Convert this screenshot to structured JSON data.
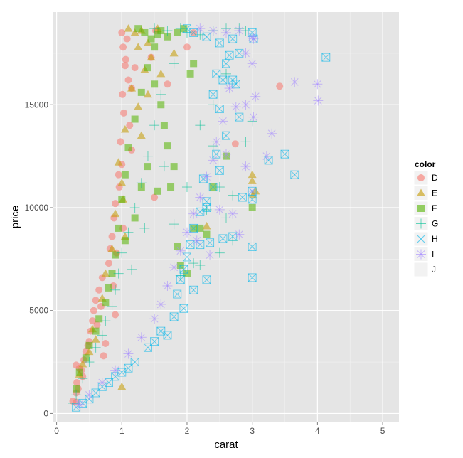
{
  "chart_data": {
    "type": "scatter",
    "title": "",
    "xlabel": "carat",
    "ylabel": "price",
    "xlim": [
      -0.05,
      5.25
    ],
    "ylim": [
      -400,
      19500
    ],
    "x_ticks": [
      0,
      1,
      2,
      3,
      4,
      5
    ],
    "y_ticks": [
      0,
      5000,
      10000,
      15000
    ],
    "x_tick_labels": [
      "0",
      "1",
      "2",
      "3",
      "4",
      "5"
    ],
    "y_tick_labels": [
      "0",
      "5000",
      "10000",
      "15000"
    ],
    "grid": true,
    "legend": {
      "title": "color",
      "placement": "right",
      "entries": [
        {
          "label": "D",
          "shape": "circle",
          "color": "#F8766D"
        },
        {
          "label": "E",
          "shape": "triangle",
          "color": "#C49A00"
        },
        {
          "label": "F",
          "shape": "square",
          "color": "#53B400"
        },
        {
          "label": "G",
          "shape": "plus",
          "color": "#00C094"
        },
        {
          "label": "H",
          "shape": "square-x",
          "color": "#00B6EB"
        },
        {
          "label": "I",
          "shape": "asterisk",
          "color": "#A58AFF"
        },
        {
          "label": "J",
          "shape": "none",
          "color": "#FB61D7"
        }
      ]
    },
    "series": [
      {
        "name": "D",
        "shape": "circle",
        "color": "#F8766D",
        "points": [
          [
            1.0,
            18500
          ],
          [
            1.02,
            17800
          ],
          [
            1.05,
            16900
          ],
          [
            1.01,
            15500
          ],
          [
            1.03,
            14600
          ],
          [
            0.98,
            13200
          ],
          [
            1.0,
            12100
          ],
          [
            0.96,
            11000
          ],
          [
            0.9,
            10200
          ],
          [
            0.88,
            9500
          ],
          [
            0.85,
            8600
          ],
          [
            0.82,
            8000
          ],
          [
            0.8,
            7300
          ],
          [
            0.7,
            6600
          ],
          [
            0.65,
            6000
          ],
          [
            0.6,
            5500
          ],
          [
            0.57,
            5000
          ],
          [
            0.55,
            4500
          ],
          [
            0.52,
            4000
          ],
          [
            0.5,
            3500
          ],
          [
            0.45,
            3000
          ],
          [
            0.42,
            2600
          ],
          [
            0.3,
            2350
          ],
          [
            0.35,
            2200
          ],
          [
            0.4,
            1800
          ],
          [
            0.31,
            1500
          ],
          [
            0.3,
            1000
          ],
          [
            0.3,
            550
          ],
          [
            0.25,
            600
          ],
          [
            0.72,
            2800
          ],
          [
            0.75,
            3400
          ],
          [
            0.9,
            4800
          ],
          [
            1.06,
            17200
          ],
          [
            1.1,
            16200
          ],
          [
            1.08,
            18200
          ],
          [
            1.12,
            14000
          ],
          [
            1.15,
            15800
          ],
          [
            1.2,
            16800
          ],
          [
            1.15,
            12800
          ],
          [
            1.45,
            17300
          ],
          [
            1.52,
            18600
          ],
          [
            1.7,
            16000
          ],
          [
            2.0,
            17800
          ],
          [
            2.1,
            18500
          ],
          [
            3.42,
            15900
          ],
          [
            2.74,
            13100
          ],
          [
            1.5,
            10500
          ],
          [
            1.02,
            9000
          ],
          [
            0.92,
            7800
          ],
          [
            0.95,
            11600
          ],
          [
            0.87,
            6200
          ],
          [
            0.68,
            5200
          ],
          [
            0.62,
            4300
          ],
          [
            0.48,
            3300
          ],
          [
            0.38,
            2100
          ],
          [
            0.33,
            1200
          ]
        ]
      },
      {
        "name": "E",
        "shape": "triangle",
        "color": "#C49A00",
        "points": [
          [
            1.1,
            18700
          ],
          [
            1.2,
            18500
          ],
          [
            1.3,
            18600
          ],
          [
            1.25,
            17800
          ],
          [
            1.4,
            18000
          ],
          [
            1.45,
            17300
          ],
          [
            1.55,
            18700
          ],
          [
            1.35,
            16700
          ],
          [
            1.15,
            15800
          ],
          [
            1.05,
            13800
          ],
          [
            0.95,
            12200
          ],
          [
            0.9,
            9700
          ],
          [
            1.0,
            11200
          ],
          [
            1.02,
            10400
          ],
          [
            0.7,
            5600
          ],
          [
            0.55,
            4100
          ],
          [
            0.6,
            3600
          ],
          [
            0.4,
            2400
          ],
          [
            1.0,
            1300
          ],
          [
            1.3,
            13500
          ],
          [
            1.6,
            16500
          ],
          [
            1.8,
            17500
          ],
          [
            2.3,
            9100
          ],
          [
            3.0,
            11600
          ],
          [
            3.01,
            10600
          ],
          [
            3.05,
            10800
          ],
          [
            3.0,
            11300
          ],
          [
            1.25,
            14900
          ],
          [
            1.4,
            15500
          ],
          [
            1.05,
            8600
          ],
          [
            0.85,
            8000
          ],
          [
            0.75,
            6800
          ],
          [
            0.5,
            3000
          ],
          [
            0.35,
            1900
          ]
        ]
      },
      {
        "name": "F",
        "shape": "square",
        "color": "#53B400",
        "points": [
          [
            1.25,
            18700
          ],
          [
            1.35,
            18500
          ],
          [
            1.45,
            18200
          ],
          [
            1.5,
            17800
          ],
          [
            1.55,
            18400
          ],
          [
            1.6,
            18600
          ],
          [
            1.7,
            18300
          ],
          [
            1.85,
            18500
          ],
          [
            1.95,
            18700
          ],
          [
            1.4,
            16800
          ],
          [
            1.3,
            15600
          ],
          [
            1.2,
            14300
          ],
          [
            1.1,
            12900
          ],
          [
            1.05,
            11600
          ],
          [
            1.0,
            10400
          ],
          [
            0.95,
            9000
          ],
          [
            0.9,
            7700
          ],
          [
            0.85,
            6800
          ],
          [
            0.8,
            6100
          ],
          [
            0.75,
            5400
          ],
          [
            0.65,
            4600
          ],
          [
            0.6,
            4000
          ],
          [
            0.5,
            3300
          ],
          [
            0.45,
            2700
          ],
          [
            0.35,
            2000
          ],
          [
            0.3,
            1200
          ],
          [
            1.5,
            16000
          ],
          [
            1.6,
            15000
          ],
          [
            1.7,
            13000
          ],
          [
            1.8,
            12000
          ],
          [
            1.75,
            11000
          ],
          [
            2.1,
            9000
          ],
          [
            2.2,
            9000
          ],
          [
            2.3,
            8700
          ],
          [
            2.4,
            11000
          ],
          [
            2.6,
            12500
          ],
          [
            3.0,
            10000
          ],
          [
            1.9,
            7200
          ],
          [
            2.0,
            6800
          ],
          [
            1.85,
            8100
          ],
          [
            1.65,
            14000
          ],
          [
            1.2,
            9500
          ],
          [
            1.05,
            8400
          ],
          [
            2.05,
            16500
          ],
          [
            2.1,
            17000
          ],
          [
            1.4,
            12000
          ],
          [
            1.55,
            10800
          ],
          [
            1.3,
            11000
          ]
        ]
      },
      {
        "name": "G",
        "shape": "plus",
        "color": "#00C094",
        "points": [
          [
            1.5,
            18700
          ],
          [
            1.7,
            18600
          ],
          [
            1.9,
            18700
          ],
          [
            2.0,
            18500
          ],
          [
            2.2,
            18400
          ],
          [
            2.4,
            18600
          ],
          [
            2.6,
            18700
          ],
          [
            2.8,
            18700
          ],
          [
            2.9,
            18600
          ],
          [
            1.8,
            17000
          ],
          [
            1.6,
            15500
          ],
          [
            1.5,
            14000
          ],
          [
            1.4,
            12500
          ],
          [
            1.3,
            11200
          ],
          [
            1.2,
            10000
          ],
          [
            1.1,
            8800
          ],
          [
            1.0,
            7800
          ],
          [
            0.95,
            6800
          ],
          [
            0.9,
            6000
          ],
          [
            0.85,
            5200
          ],
          [
            0.75,
            4500
          ],
          [
            0.7,
            3800
          ],
          [
            0.6,
            3200
          ],
          [
            0.5,
            2500
          ],
          [
            0.4,
            1700
          ],
          [
            0.3,
            900
          ],
          [
            0.25,
            500
          ],
          [
            2.2,
            14000
          ],
          [
            2.4,
            13000
          ],
          [
            2.5,
            11000
          ],
          [
            2.7,
            10600
          ],
          [
            2.9,
            13200
          ],
          [
            3.0,
            14200
          ],
          [
            2.5,
            7800
          ],
          [
            2.7,
            8400
          ],
          [
            2.6,
            9500
          ],
          [
            2.3,
            9900
          ],
          [
            2.1,
            7300
          ],
          [
            1.9,
            6700
          ],
          [
            2.2,
            7200
          ],
          [
            2.0,
            11000
          ],
          [
            1.8,
            9200
          ],
          [
            2.4,
            15000
          ],
          [
            2.6,
            16500
          ],
          [
            1.65,
            12000
          ],
          [
            1.35,
            9000
          ],
          [
            1.15,
            7000
          ]
        ]
      },
      {
        "name": "H",
        "shape": "square-x",
        "color": "#00B6EB",
        "points": [
          [
            2.0,
            18700
          ],
          [
            2.1,
            18500
          ],
          [
            2.3,
            18300
          ],
          [
            2.5,
            18000
          ],
          [
            2.7,
            18200
          ],
          [
            2.6,
            17000
          ],
          [
            2.55,
            16200
          ],
          [
            2.7,
            16200
          ],
          [
            2.75,
            16000
          ],
          [
            2.5,
            14800
          ],
          [
            2.6,
            13500
          ],
          [
            2.45,
            12600
          ],
          [
            2.5,
            11800
          ],
          [
            2.4,
            11000
          ],
          [
            2.3,
            10300
          ],
          [
            2.2,
            9800
          ],
          [
            2.1,
            9000
          ],
          [
            2.05,
            8200
          ],
          [
            2.0,
            7600
          ],
          [
            1.95,
            7000
          ],
          [
            1.9,
            6500
          ],
          [
            1.85,
            5800
          ],
          [
            1.95,
            5100
          ],
          [
            1.8,
            4700
          ],
          [
            1.6,
            4000
          ],
          [
            1.4,
            3200
          ],
          [
            1.2,
            2500
          ],
          [
            1.0,
            2000
          ],
          [
            0.8,
            1500
          ],
          [
            0.6,
            1000
          ],
          [
            0.4,
            500
          ],
          [
            0.3,
            300
          ],
          [
            3.0,
            18500
          ],
          [
            3.02,
            18200
          ],
          [
            3.0,
            10800
          ],
          [
            3.0,
            10400
          ],
          [
            3.0,
            8100
          ],
          [
            3.0,
            6600
          ],
          [
            3.25,
            12300
          ],
          [
            3.5,
            12600
          ],
          [
            3.65,
            11600
          ],
          [
            4.13,
            17300
          ],
          [
            2.8,
            14400
          ],
          [
            2.85,
            10500
          ],
          [
            2.55,
            8500
          ],
          [
            2.7,
            8600
          ],
          [
            2.35,
            8300
          ],
          [
            2.2,
            8200
          ],
          [
            2.3,
            10000
          ],
          [
            2.25,
            11400
          ],
          [
            2.4,
            15500
          ],
          [
            2.45,
            16500
          ],
          [
            2.65,
            17400
          ],
          [
            2.8,
            17500
          ],
          [
            2.3,
            6500
          ],
          [
            2.1,
            6000
          ],
          [
            1.7,
            3800
          ],
          [
            1.5,
            3500
          ],
          [
            1.1,
            2200
          ],
          [
            0.9,
            1800
          ],
          [
            0.7,
            1300
          ],
          [
            0.5,
            700
          ]
        ]
      },
      {
        "name": "I",
        "shape": "asterisk",
        "color": "#A58AFF",
        "points": [
          [
            2.2,
            18700
          ],
          [
            2.4,
            18600
          ],
          [
            2.6,
            18500
          ],
          [
            2.8,
            18600
          ],
          [
            3.0,
            18300
          ],
          [
            3.02,
            18200
          ],
          [
            2.9,
            17500
          ],
          [
            3.0,
            17000
          ],
          [
            2.9,
            15000
          ],
          [
            3.05,
            15400
          ],
          [
            2.75,
            14900
          ],
          [
            2.65,
            15800
          ],
          [
            2.55,
            14200
          ],
          [
            2.45,
            13200
          ],
          [
            2.4,
            12300
          ],
          [
            2.3,
            11500
          ],
          [
            2.2,
            10500
          ],
          [
            2.1,
            9700
          ],
          [
            2.0,
            8800
          ],
          [
            1.9,
            7900
          ],
          [
            1.8,
            7100
          ],
          [
            1.7,
            6200
          ],
          [
            1.6,
            5300
          ],
          [
            1.5,
            4600
          ],
          [
            1.3,
            3700
          ],
          [
            1.1,
            2900
          ],
          [
            0.9,
            2100
          ],
          [
            0.7,
            1500
          ],
          [
            0.5,
            900
          ],
          [
            0.35,
            450
          ],
          [
            2.7,
            9700
          ],
          [
            3.0,
            10800
          ],
          [
            3.22,
            12500
          ],
          [
            3.02,
            14400
          ],
          [
            3.3,
            13600
          ],
          [
            3.65,
            16100
          ],
          [
            4.01,
            15200
          ],
          [
            4.0,
            16000
          ],
          [
            2.9,
            12000
          ],
          [
            2.8,
            8700
          ],
          [
            2.5,
            9900
          ],
          [
            2.35,
            7700
          ],
          [
            2.6,
            12600
          ],
          [
            2.15,
            8400
          ]
        ]
      }
    ]
  }
}
